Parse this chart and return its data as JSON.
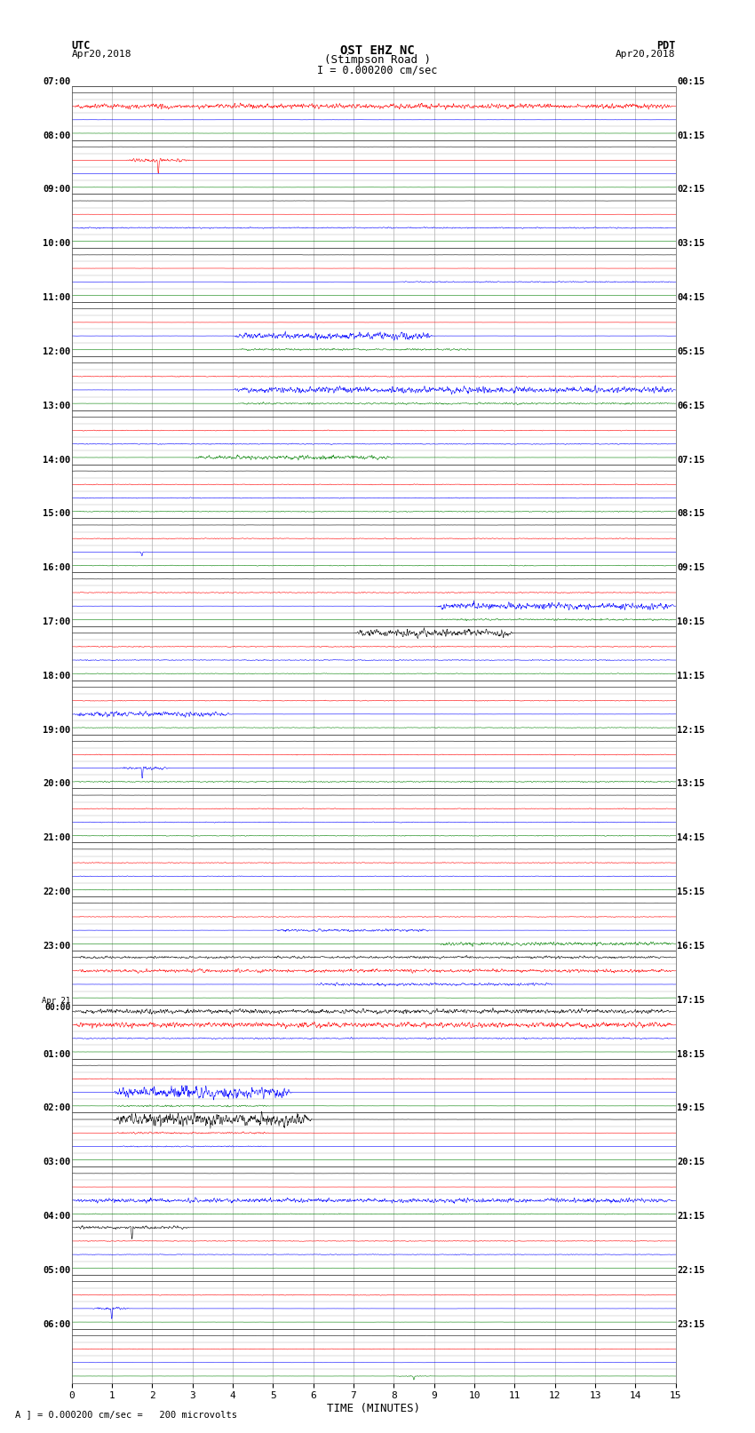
{
  "title_line1": "OST EHZ NC",
  "title_line2": "(Stimpson Road )",
  "scale_text": "I = 0.000200 cm/sec",
  "utc_label": "UTC",
  "utc_date": "Apr20,2018",
  "pdt_label": "PDT",
  "pdt_date": "Apr20,2018",
  "xlabel": "TIME (MINUTES)",
  "xmin": 0,
  "xmax": 15,
  "xticks": [
    0,
    1,
    2,
    3,
    4,
    5,
    6,
    7,
    8,
    9,
    10,
    11,
    12,
    13,
    14,
    15
  ],
  "background_color": "#ffffff",
  "grid_color": "#aaaaaa",
  "figwidth": 8.5,
  "figheight": 16.13,
  "num_hours": 24,
  "traces_per_hour": 4,
  "left_times_display": [
    "07:00",
    "08:00",
    "09:00",
    "10:00",
    "11:00",
    "12:00",
    "13:00",
    "14:00",
    "15:00",
    "16:00",
    "17:00",
    "18:00",
    "19:00",
    "20:00",
    "21:00",
    "22:00",
    "23:00",
    "Apr 21\n00:00",
    "01:00",
    "02:00",
    "03:00",
    "04:00",
    "05:00",
    "06:00"
  ],
  "right_times_display": [
    "00:15",
    "01:15",
    "02:15",
    "03:15",
    "04:15",
    "05:15",
    "06:15",
    "07:15",
    "08:15",
    "09:15",
    "10:15",
    "11:15",
    "12:15",
    "13:15",
    "14:15",
    "15:15",
    "16:15",
    "17:15",
    "18:15",
    "19:15",
    "20:15",
    "21:15",
    "22:15",
    "23:15"
  ]
}
